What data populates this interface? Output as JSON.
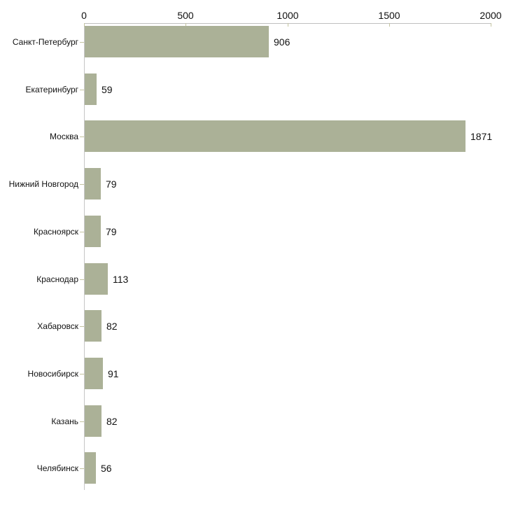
{
  "chart_data": {
    "type": "bar",
    "orientation": "horizontal",
    "title": "",
    "xlabel": "",
    "ylabel": "",
    "grid": false,
    "legend": false,
    "categories": [
      "Санкт-Петербург",
      "Екатеринбург",
      "Москва",
      "Нижний Новгород",
      "Красноярск",
      "Краснодар",
      "Хабаровск",
      "Новосибирск",
      "Казань",
      "Челябинск"
    ],
    "values": [
      906,
      59,
      1871,
      79,
      79,
      113,
      82,
      91,
      82,
      56
    ],
    "value_labels": [
      "906",
      "59",
      "1871",
      "79",
      "79",
      "113",
      "82",
      "91",
      "82",
      "56"
    ],
    "x_axis": {
      "position": "top",
      "range": [
        0,
        2000
      ],
      "ticks": [
        0,
        500,
        1000,
        1500,
        2000
      ],
      "tick_labels": [
        "0",
        "500",
        "1000",
        "1500",
        "2000"
      ]
    },
    "colors": {
      "bar_fill": "#abb197",
      "axis_line_h": "#c0c0c0",
      "axis_line_v": "#c6c6c6",
      "tick_mark": "#c4c4a0",
      "text": "#111111",
      "background": "#ffffff"
    }
  }
}
